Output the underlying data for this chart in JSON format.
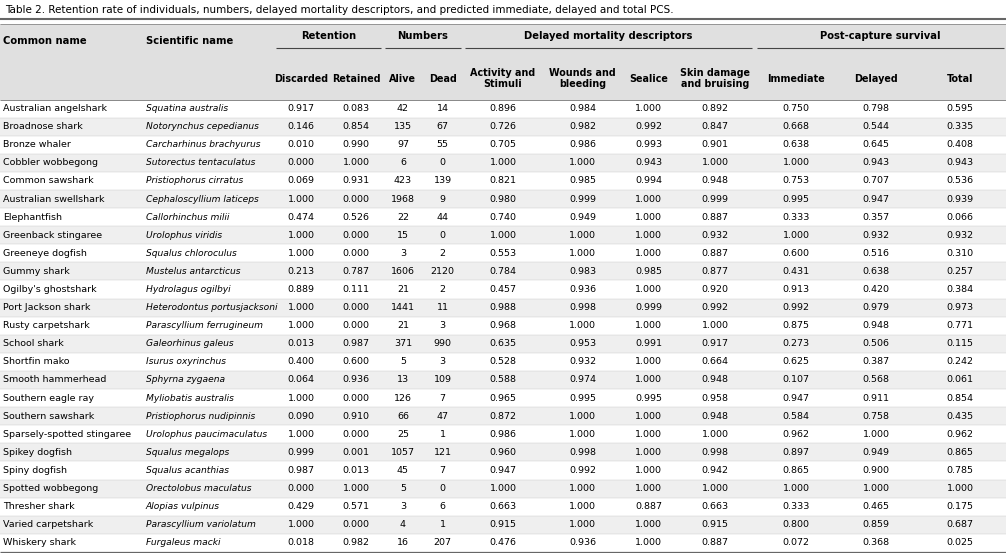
{
  "title": "Table 2. Retention rate of individuals, numbers, delayed mortality descriptors, and predicted immediate, delayed and total PCS.",
  "rows": [
    [
      "Australian angelshark",
      "Squatina australis",
      "0.917",
      "0.083",
      "42",
      "14",
      "0.896",
      "0.984",
      "1.000",
      "0.892",
      "0.750",
      "0.798",
      "0.595"
    ],
    [
      "Broadnose shark",
      "Notorynchus cepedianus",
      "0.146",
      "0.854",
      "135",
      "67",
      "0.726",
      "0.982",
      "0.992",
      "0.847",
      "0.668",
      "0.544",
      "0.335"
    ],
    [
      "Bronze whaler",
      "Carcharhinus brachyurus",
      "0.010",
      "0.990",
      "97",
      "55",
      "0.705",
      "0.986",
      "0.993",
      "0.901",
      "0.638",
      "0.645",
      "0.408"
    ],
    [
      "Cobbler wobbegong",
      "Sutorectus tentaculatus",
      "0.000",
      "1.000",
      "6",
      "0",
      "1.000",
      "1.000",
      "0.943",
      "1.000",
      "1.000",
      "0.943",
      "0.943"
    ],
    [
      "Common sawshark",
      "Pristiophorus cirratus",
      "0.069",
      "0.931",
      "423",
      "139",
      "0.821",
      "0.985",
      "0.994",
      "0.948",
      "0.753",
      "0.707",
      "0.536"
    ],
    [
      "Australian swellshark",
      "Cephaloscyllium laticeps",
      "1.000",
      "0.000",
      "1968",
      "9",
      "0.980",
      "0.999",
      "1.000",
      "0.999",
      "0.995",
      "0.947",
      "0.939"
    ],
    [
      "Elephantfish",
      "Callorhinchus milii",
      "0.474",
      "0.526",
      "22",
      "44",
      "0.740",
      "0.949",
      "1.000",
      "0.887",
      "0.333",
      "0.357",
      "0.066"
    ],
    [
      "Greenback stingaree",
      "Urolophus viridis",
      "1.000",
      "0.000",
      "15",
      "0",
      "1.000",
      "1.000",
      "1.000",
      "0.932",
      "1.000",
      "0.932",
      "0.932"
    ],
    [
      "Greeneye dogfish",
      "Squalus chloroculus",
      "1.000",
      "0.000",
      "3",
      "2",
      "0.553",
      "1.000",
      "1.000",
      "0.887",
      "0.600",
      "0.516",
      "0.310"
    ],
    [
      "Gummy shark",
      "Mustelus antarcticus",
      "0.213",
      "0.787",
      "1606",
      "2120",
      "0.784",
      "0.983",
      "0.985",
      "0.877",
      "0.431",
      "0.638",
      "0.257"
    ],
    [
      "Ogilby's ghostshark",
      "Hydrolagus ogilbyi",
      "0.889",
      "0.111",
      "21",
      "2",
      "0.457",
      "0.936",
      "1.000",
      "0.920",
      "0.913",
      "0.420",
      "0.384"
    ],
    [
      "Port Jackson shark",
      "Heterodontus portusjacksoni",
      "1.000",
      "0.000",
      "1441",
      "11",
      "0.988",
      "0.998",
      "0.999",
      "0.992",
      "0.992",
      "0.979",
      "0.973"
    ],
    [
      "Rusty carpetshark",
      "Parascyllium ferrugineum",
      "1.000",
      "0.000",
      "21",
      "3",
      "0.968",
      "1.000",
      "1.000",
      "1.000",
      "0.875",
      "0.948",
      "0.771"
    ],
    [
      "School shark",
      "Galeorhinus galeus",
      "0.013",
      "0.987",
      "371",
      "990",
      "0.635",
      "0.953",
      "0.991",
      "0.917",
      "0.273",
      "0.506",
      "0.115"
    ],
    [
      "Shortfin mako",
      "Isurus oxyrinchus",
      "0.400",
      "0.600",
      "5",
      "3",
      "0.528",
      "0.932",
      "1.000",
      "0.664",
      "0.625",
      "0.387",
      "0.242"
    ],
    [
      "Smooth hammerhead",
      "Sphyrna zygaena",
      "0.064",
      "0.936",
      "13",
      "109",
      "0.588",
      "0.974",
      "1.000",
      "0.948",
      "0.107",
      "0.568",
      "0.061"
    ],
    [
      "Southern eagle ray",
      "Myliobatis australis",
      "1.000",
      "0.000",
      "126",
      "7",
      "0.965",
      "0.995",
      "0.995",
      "0.958",
      "0.947",
      "0.911",
      "0.854"
    ],
    [
      "Southern sawshark",
      "Pristiophorus nudipinnis",
      "0.090",
      "0.910",
      "66",
      "47",
      "0.872",
      "1.000",
      "1.000",
      "0.948",
      "0.584",
      "0.758",
      "0.435"
    ],
    [
      "Sparsely-spotted stingaree",
      "Urolophus paucimaculatus",
      "1.000",
      "0.000",
      "25",
      "1",
      "0.986",
      "1.000",
      "1.000",
      "1.000",
      "0.962",
      "1.000",
      "0.962"
    ],
    [
      "Spikey dogfish",
      "Squalus megalops",
      "0.999",
      "0.001",
      "1057",
      "121",
      "0.960",
      "0.998",
      "1.000",
      "0.998",
      "0.897",
      "0.949",
      "0.865"
    ],
    [
      "Spiny dogfish",
      "Squalus acanthias",
      "0.987",
      "0.013",
      "45",
      "7",
      "0.947",
      "0.992",
      "1.000",
      "0.942",
      "0.865",
      "0.900",
      "0.785"
    ],
    [
      "Spotted wobbegong",
      "Orectolobus maculatus",
      "0.000",
      "1.000",
      "5",
      "0",
      "1.000",
      "1.000",
      "1.000",
      "1.000",
      "1.000",
      "1.000",
      "1.000"
    ],
    [
      "Thresher shark",
      "Alopias vulpinus",
      "0.429",
      "0.571",
      "3",
      "6",
      "0.663",
      "1.000",
      "0.887",
      "0.663",
      "0.333",
      "0.465",
      "0.175"
    ],
    [
      "Varied carpetshark",
      "Parascyllium variolatum",
      "1.000",
      "0.000",
      "4",
      "1",
      "0.915",
      "1.000",
      "1.000",
      "0.915",
      "0.800",
      "0.859",
      "0.687"
    ],
    [
      "Whiskery shark",
      "Furgaleus macki",
      "0.018",
      "0.982",
      "16",
      "207",
      "0.476",
      "0.936",
      "1.000",
      "0.887",
      "0.072",
      "0.368",
      "0.025"
    ]
  ],
  "header_bg": "#e0e0e0",
  "row_bg_odd": "#ffffff",
  "row_bg_even": "#efefef",
  "text_color": "#000000",
  "title_color": "#000000",
  "col_starts_pct": [
    0.0,
    0.142,
    0.272,
    0.327,
    0.381,
    0.42,
    0.46,
    0.54,
    0.618,
    0.672,
    0.75,
    0.833,
    0.909,
    1.0
  ],
  "group_underline_color": "#555555",
  "border_color": "#888888",
  "title_fontsize": 7.5,
  "header_fontsize": 7.2,
  "data_fontsize": 6.8
}
